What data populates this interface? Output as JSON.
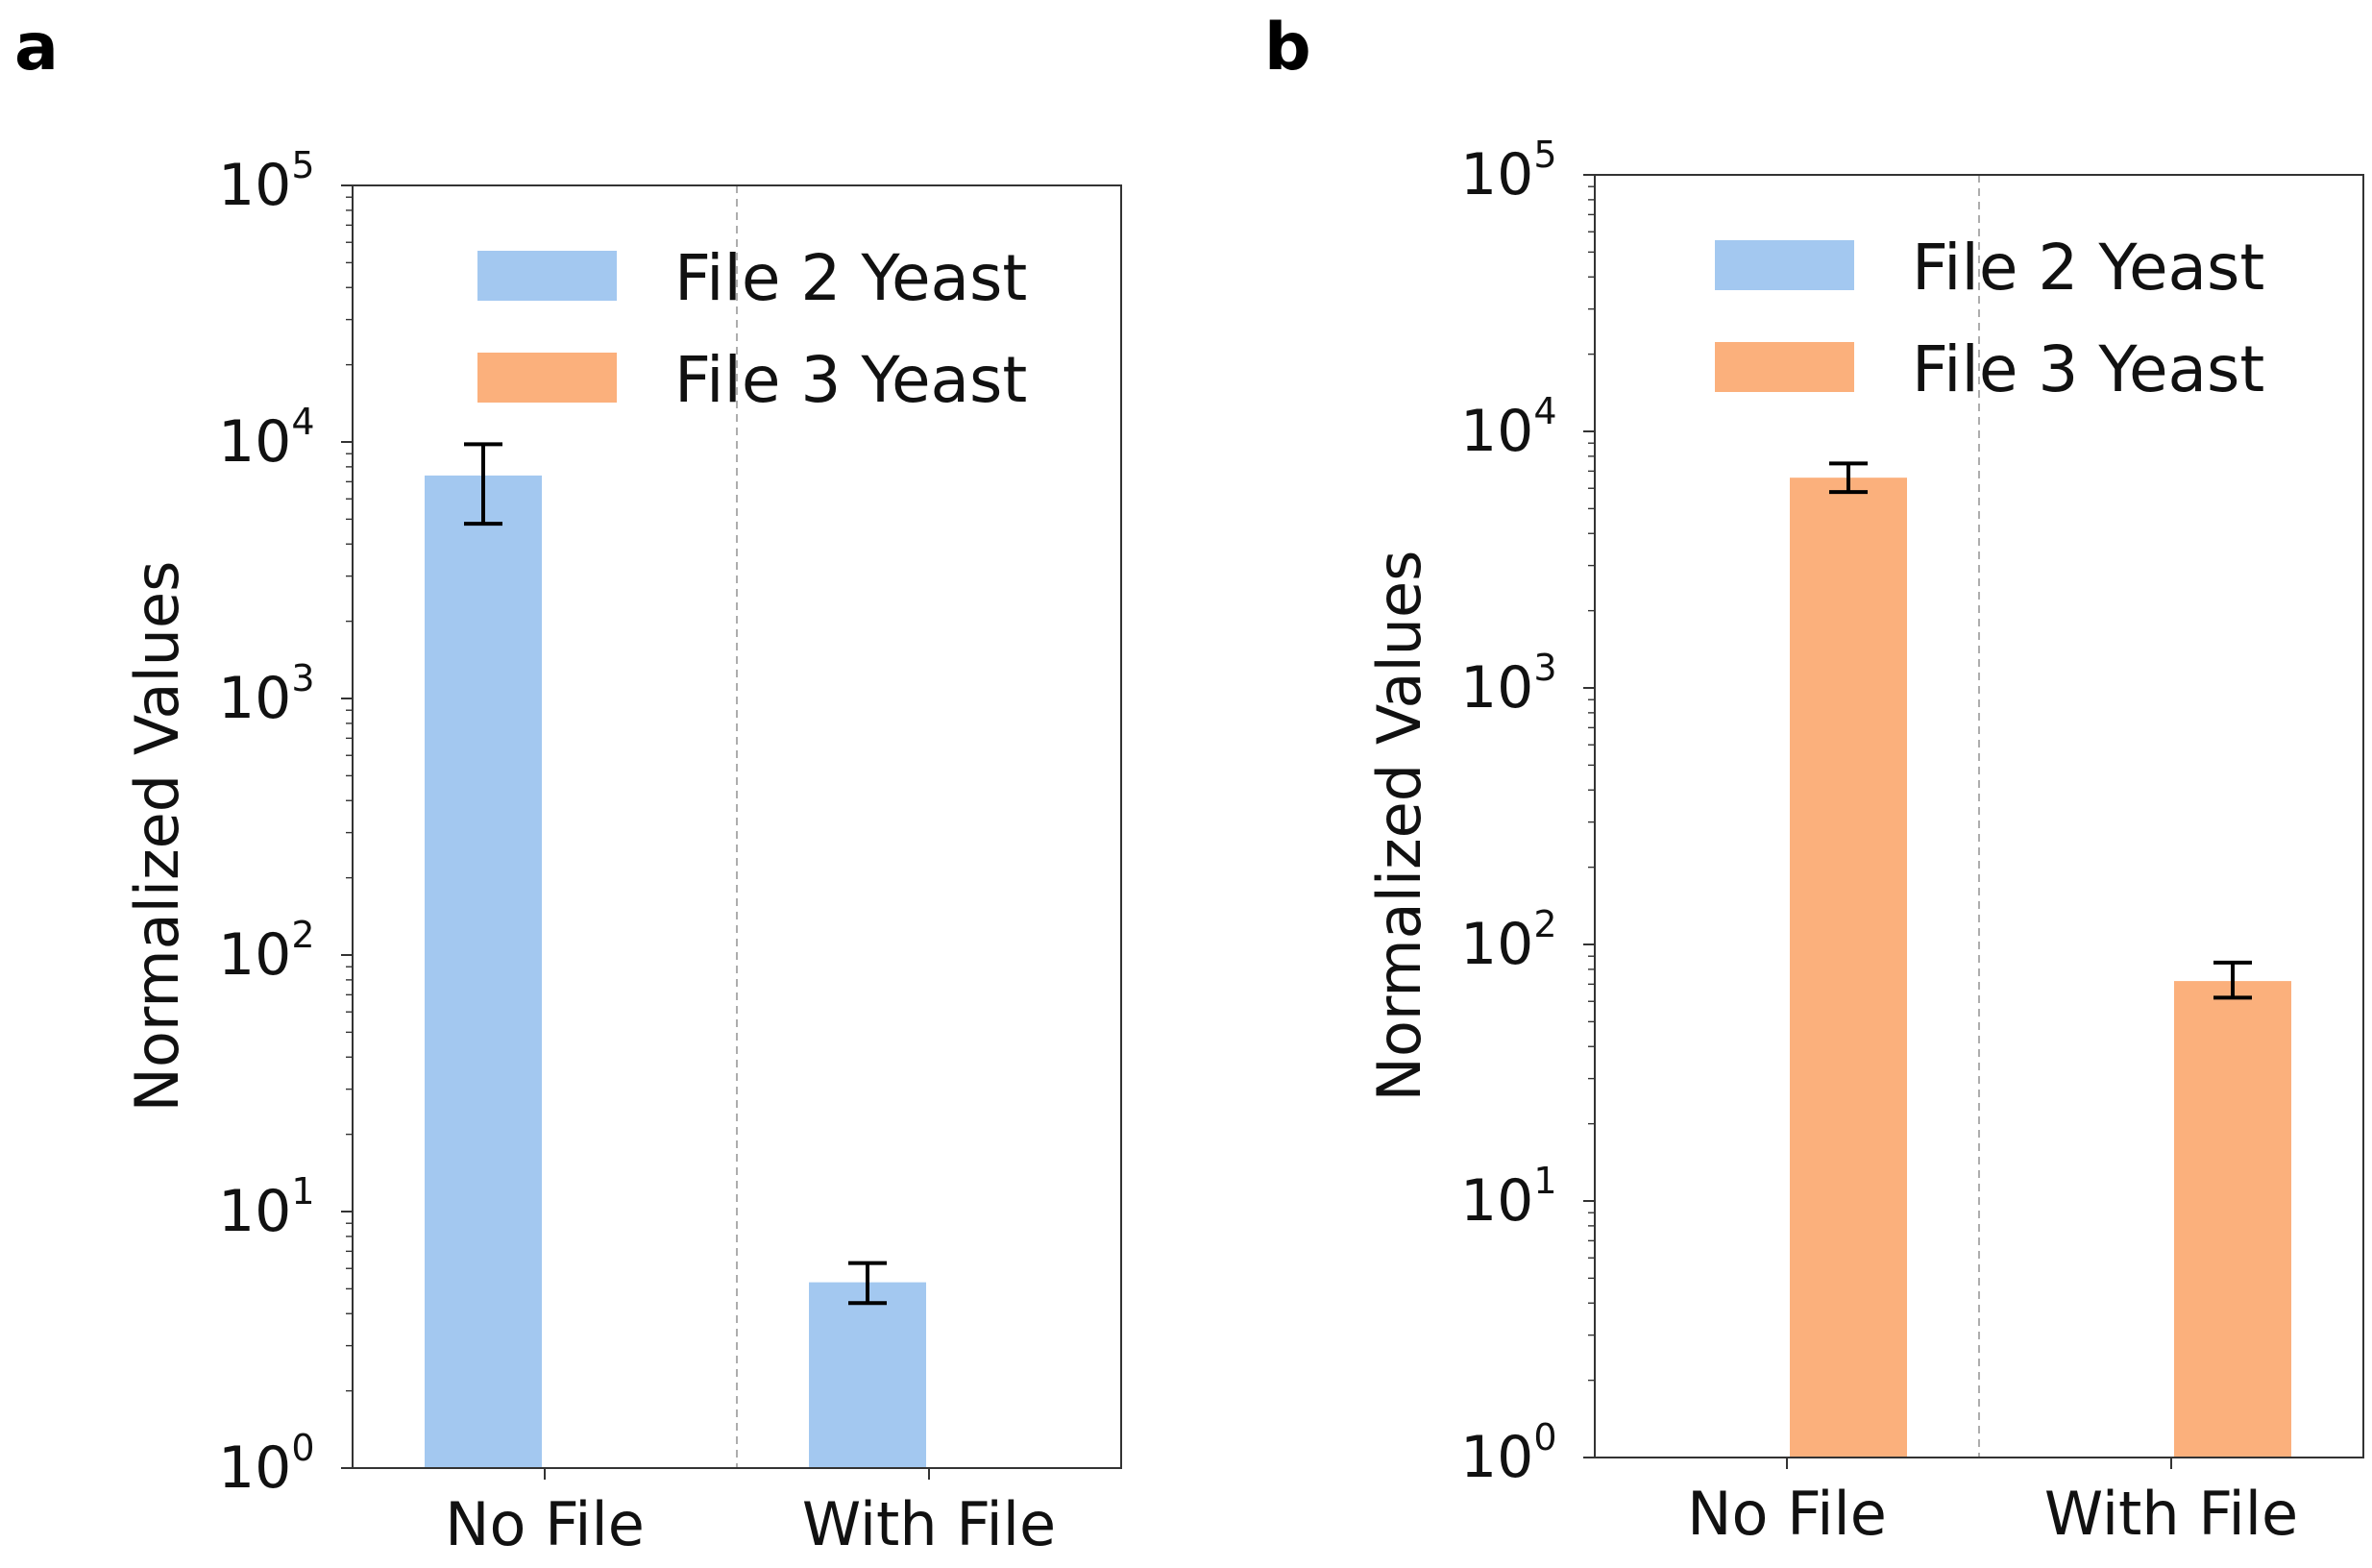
{
  "colors": {
    "file2": "#a3c8f0",
    "file3": "#fbb07c"
  },
  "chart_data": [
    {
      "panel": "a",
      "type": "bar",
      "yscale": "log",
      "ylim": [
        1,
        100000
      ],
      "ylabel": "Normalized Values",
      "xlabel": "",
      "categories": [
        "No File",
        "With File"
      ],
      "yticks": [
        "10^0",
        "10^1",
        "10^2",
        "10^3",
        "10^4",
        "10^5"
      ],
      "legend_position": "top-right",
      "series": [
        {
          "name": "File 2 Yeast",
          "color_key": "file2",
          "values": [
            7400,
            5.3
          ],
          "err_low": [
            4800,
            4.4
          ],
          "err_high": [
            9800,
            6.3
          ]
        },
        {
          "name": "File 3 Yeast",
          "color_key": "file3",
          "values": [
            1,
            1
          ],
          "err_low": [
            1,
            1
          ],
          "err_high": [
            1,
            1
          ]
        }
      ]
    },
    {
      "panel": "b",
      "type": "bar",
      "yscale": "log",
      "ylim": [
        1,
        100000
      ],
      "ylabel": "Normalized Values",
      "xlabel": "",
      "categories": [
        "No File",
        "With File"
      ],
      "yticks": [
        "10^0",
        "10^1",
        "10^2",
        "10^3",
        "10^4",
        "10^5"
      ],
      "legend_position": "top-right",
      "series": [
        {
          "name": "File 2 Yeast",
          "color_key": "file2",
          "values": [
            1,
            1
          ],
          "err_low": [
            1,
            1
          ],
          "err_high": [
            1,
            1
          ]
        },
        {
          "name": "File 3 Yeast",
          "color_key": "file3",
          "values": [
            6600,
            72
          ],
          "err_low": [
            5800,
            62
          ],
          "err_high": [
            7500,
            85
          ]
        }
      ]
    }
  ]
}
